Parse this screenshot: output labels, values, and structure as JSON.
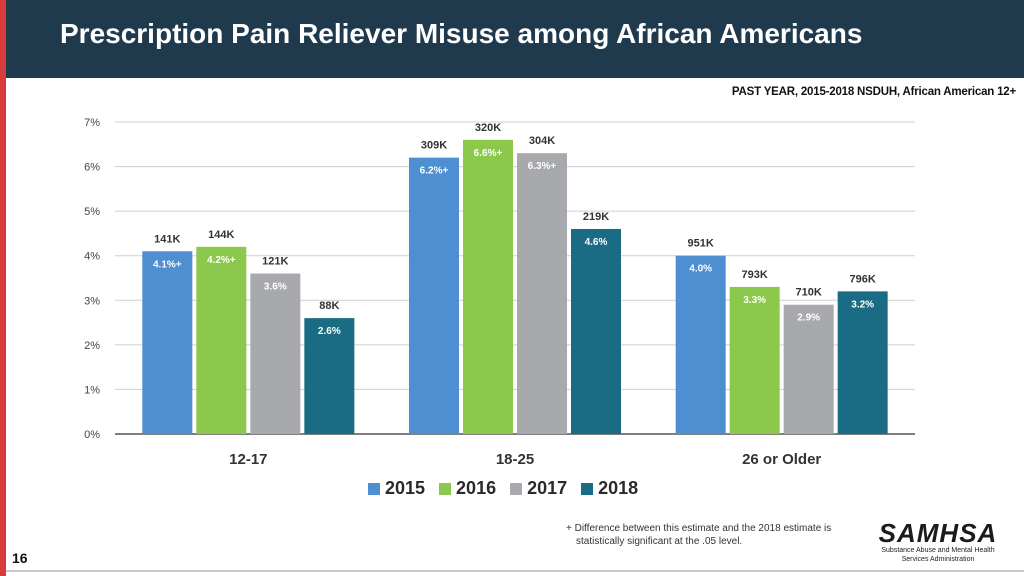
{
  "header": {
    "title": "Prescription Pain Reliever Misuse among African Americans"
  },
  "chart_subtitle": "PAST YEAR, 2015-2018  NSDUH, African American 12+",
  "chart_data": {
    "type": "bar",
    "title": "Prescription Pain Reliever Misuse among African Americans",
    "subtitle": "PAST YEAR, 2015-2018  NSDUH, African American 12+",
    "categories": [
      "12-17",
      "18-25",
      "26 or Older"
    ],
    "ylim": [
      0,
      7
    ],
    "yticks": [
      0,
      1,
      2,
      3,
      4,
      5,
      6,
      7
    ],
    "ytick_labels": [
      "0%",
      "1%",
      "2%",
      "3%",
      "4%",
      "5%",
      "6%",
      "7%"
    ],
    "grid": true,
    "legend_position": "bottom",
    "series": [
      {
        "name": "2015",
        "color": "#4d8fd1",
        "values": [
          4.1,
          6.2,
          4.0
        ],
        "labels": [
          "4.1%+",
          "6.2%+",
          "4.0%"
        ],
        "counts": [
          "141K",
          "309K",
          "951K"
        ]
      },
      {
        "name": "2016",
        "color": "#8cc84b",
        "values": [
          4.2,
          6.6,
          3.3
        ],
        "labels": [
          "4.2%+",
          "6.6%+",
          "3.3%"
        ],
        "counts": [
          "144K",
          "320K",
          "793K"
        ]
      },
      {
        "name": "2017",
        "color": "#a7a9ac",
        "values": [
          3.6,
          6.3,
          2.9
        ],
        "labels": [
          "3.6%",
          "6.3%+",
          "2.9%"
        ],
        "counts": [
          "121K",
          "304K",
          "710K"
        ]
      },
      {
        "name": "2018",
        "color": "#1a6b84",
        "values": [
          2.6,
          4.6,
          3.2
        ],
        "labels": [
          "2.6%",
          "4.6%",
          "3.2%"
        ],
        "counts": [
          "88K",
          "219K",
          "796K"
        ]
      }
    ]
  },
  "footnote": {
    "line1": "+ Difference between this estimate and the 2018 estimate is",
    "line2": "statistically significant at the .05 level."
  },
  "page_number": "16",
  "logo": {
    "word": "SAMHSA",
    "sub1": "Substance Abuse and Mental Health",
    "sub2": "Services Administration"
  }
}
